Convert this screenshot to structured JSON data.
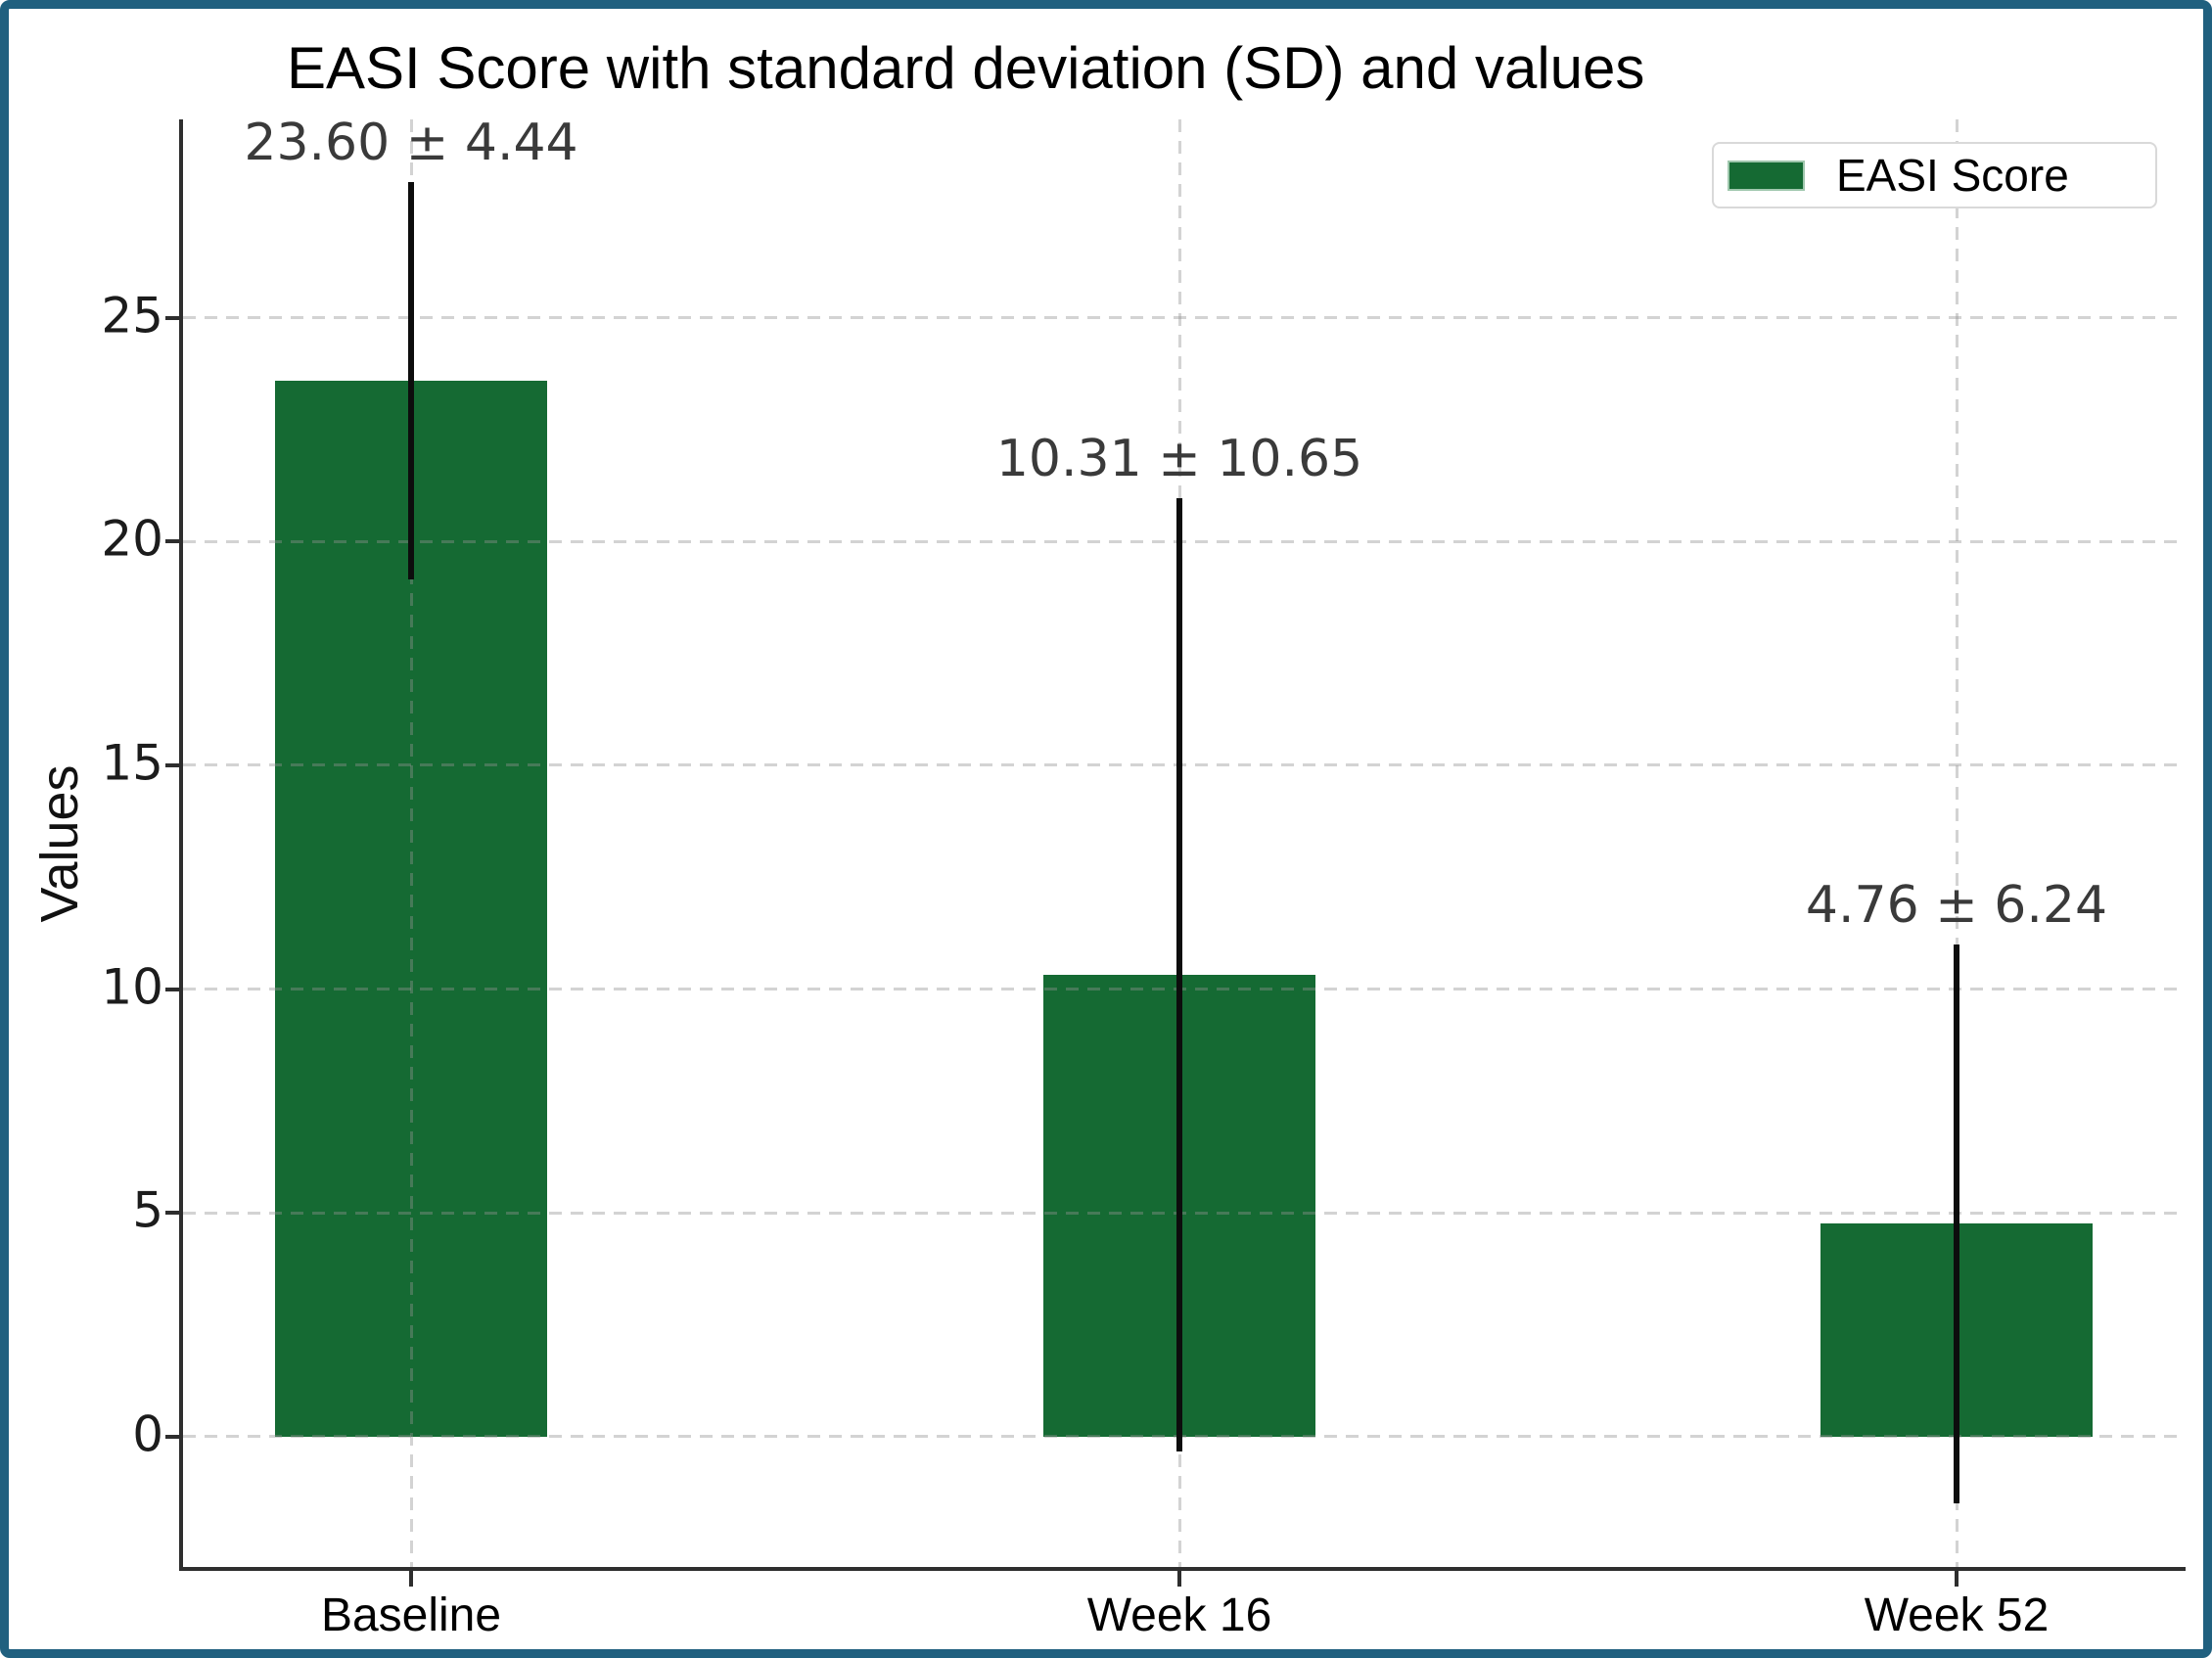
{
  "window": {
    "background": "#ffffff",
    "border_color": "#20607f"
  },
  "chart_data": {
    "type": "bar",
    "title": "EASI Score with standard deviation (SD) and values",
    "ylabel": "Values",
    "xlabel": "",
    "categories": [
      "Baseline",
      "Week 16",
      "Week 52"
    ],
    "series": [
      {
        "name": "EASI Score",
        "values": [
          23.6,
          10.31,
          4.76
        ],
        "sd": [
          4.44,
          10.65,
          6.24
        ],
        "bar_labels": [
          "23.60 ± 4.44",
          "10.31 ± 10.65",
          "4.76 ± 6.24"
        ]
      }
    ],
    "yticks": [
      0,
      5,
      10,
      15,
      20,
      25
    ],
    "ylim": [
      -2.91,
      29.43
    ],
    "grid": {
      "show": true,
      "style": "dashed",
      "axes": "both"
    },
    "legend": {
      "position": "upper-right",
      "entries": [
        {
          "label": "EASI Score",
          "color": "#156a33"
        }
      ]
    },
    "colors": {
      "bar": "#156a33",
      "error_bar": "#0d0d0d",
      "grid": "#c9c9c9",
      "spine": "#2e2e2e",
      "tick_label": "#1c1c1c",
      "bar_label": "#3a3a3a",
      "title": "#000000"
    }
  }
}
